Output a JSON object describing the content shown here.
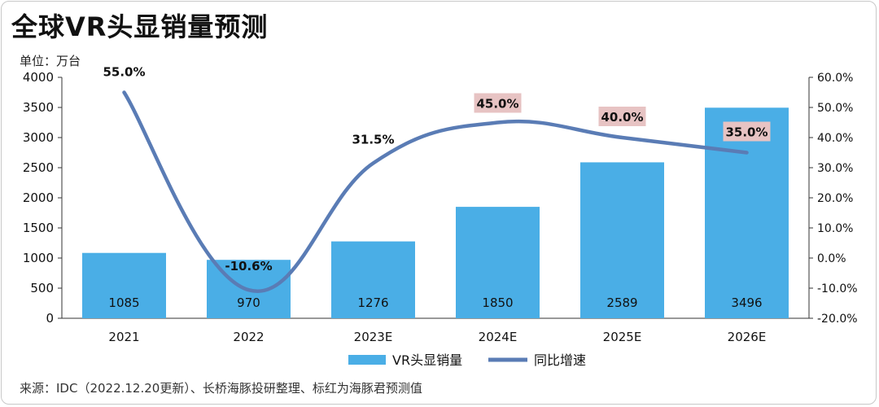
{
  "title": "全球VR头显销量预测",
  "unit_label": "单位：万台",
  "source": "来源：IDC（2022.12.20更新）、长桥海豚投研整理、标红为海豚君预测值",
  "colors": {
    "bar": "#4aaee6",
    "line": "#5a7cb5",
    "highlight": "#e7c3c3"
  },
  "chart_data": {
    "type": "bar",
    "categories": [
      "2021",
      "2022",
      "2023E",
      "2024E",
      "2025E",
      "2026E"
    ],
    "series": [
      {
        "name": "VR头显销量",
        "type": "bar",
        "axis": "left",
        "values": [
          1085,
          970,
          1276,
          1850,
          2589,
          3496
        ],
        "labels": [
          "1085",
          "970",
          "1276",
          "1850",
          "2589",
          "3496"
        ]
      },
      {
        "name": "同比增速",
        "type": "line",
        "axis": "right",
        "values": [
          55.0,
          -10.6,
          31.5,
          45.0,
          40.0,
          35.0
        ],
        "labels": [
          "55.0%",
          "-10.6%",
          "31.5%",
          "45.0%",
          "40.0%",
          "35.0%"
        ],
        "highlighted": [
          false,
          false,
          false,
          true,
          true,
          true
        ]
      }
    ],
    "y_left": {
      "range": [
        0,
        4000
      ],
      "ticks": [
        "0",
        "500",
        "1000",
        "1500",
        "2000",
        "2500",
        "3000",
        "3500",
        "4000"
      ]
    },
    "y_right": {
      "range": [
        -20,
        60
      ],
      "ticks": [
        "-20.0%",
        "-10.0%",
        "0.0%",
        "10.0%",
        "20.0%",
        "30.0%",
        "40.0%",
        "50.0%",
        "60.0%"
      ]
    },
    "grid": false,
    "legend": "bottom"
  }
}
